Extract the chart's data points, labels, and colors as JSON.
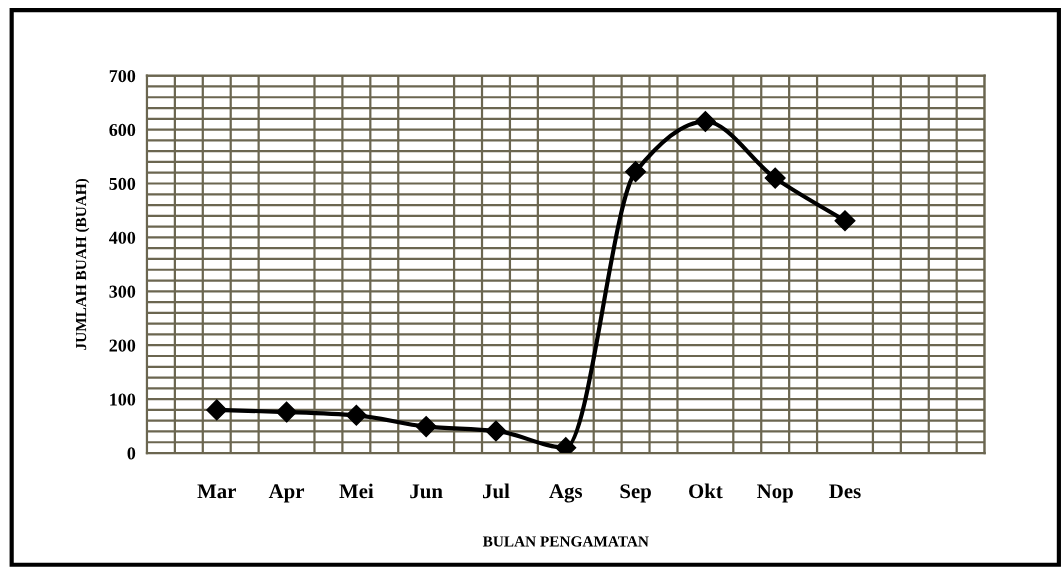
{
  "chart_data": {
    "type": "line",
    "xlabel": "BULAN PENGAMATAN",
    "ylabel": "JUMLAH BUAH (BUAH)",
    "categories": [
      null,
      "Mar",
      "Apr",
      "Mei",
      "Jun",
      "Jul",
      "Ags",
      "Sep",
      "Okt",
      "Nop",
      "Des",
      null
    ],
    "series": [
      {
        "color": "#000000",
        "values": [
          null,
          80,
          76,
          70,
          49,
          41,
          10,
          522,
          615,
          510,
          431,
          null
        ]
      }
    ],
    "ylim": [
      0,
      700
    ],
    "yticks": [
      0,
      100,
      200,
      300,
      400,
      500,
      600,
      700
    ],
    "grid": true,
    "marker": "diamond",
    "line_style": "solid",
    "legend": false
  }
}
